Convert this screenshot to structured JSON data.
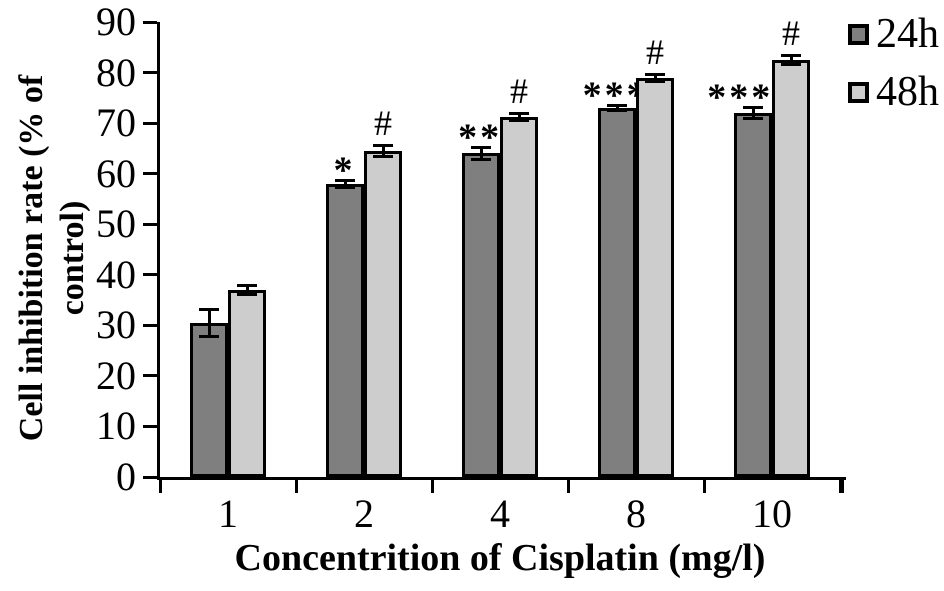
{
  "chart_data": {
    "type": "bar",
    "title": "",
    "xlabel": "Concentrition of Cisplatin (mg/l)",
    "ylabel": "Cell  inhibition rate (% of control)",
    "ylabel_line1": "Cell  inhibition rate (% of",
    "ylabel_line2": "control)",
    "categories": [
      "1",
      "2",
      "4",
      "8",
      "10"
    ],
    "series": [
      {
        "name": "24h",
        "color": "#7f7f7f",
        "values": [
          30.5,
          58,
          64,
          73,
          72
        ],
        "errors": [
          2.8,
          0.8,
          1.3,
          0.6,
          1.2
        ],
        "annotations": [
          "",
          "*",
          "**",
          "***",
          "****"
        ]
      },
      {
        "name": "48h",
        "color": "#cdcdcd",
        "values": [
          37,
          64.5,
          71.3,
          79,
          82.5
        ],
        "errors": [
          1.0,
          1.2,
          0.8,
          0.8,
          1.0
        ],
        "annotations": [
          "",
          "#",
          "#",
          "#",
          "#"
        ]
      }
    ],
    "ylim": [
      0,
      90
    ],
    "yticks": [
      0,
      10,
      20,
      30,
      40,
      50,
      60,
      70,
      80,
      90
    ],
    "x_boundary_ticks": 6,
    "legend_position": "top-right",
    "grid": false,
    "axis_color": "#000000",
    "bar_border_color": "#000000",
    "background": "#ffffff"
  }
}
